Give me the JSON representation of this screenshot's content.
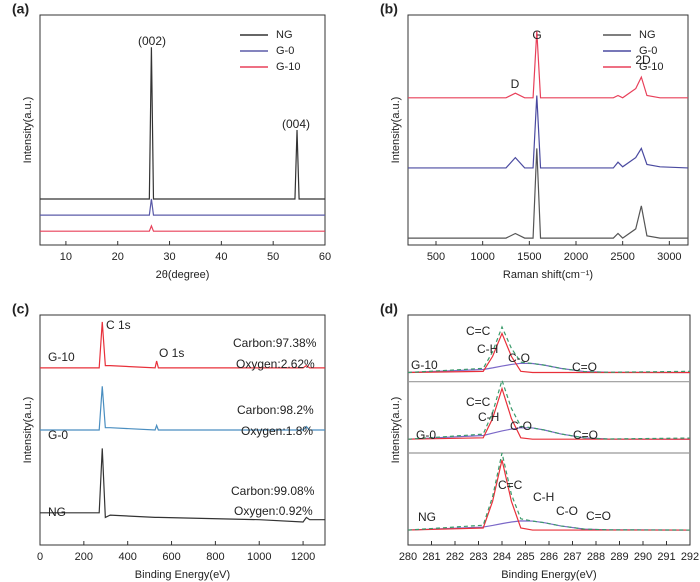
{
  "chart_data": [
    {
      "type": "line",
      "panel_label": "(a)",
      "x_label": "2θ(degree)",
      "y_label": "Intensity(a.u.)",
      "x": [
        5,
        26.1,
        26.5,
        26.9,
        54.2,
        54.6,
        55.0,
        60
      ],
      "series": [
        {
          "name": "NG",
          "color": "#333333",
          "values": [
            20,
            20,
            86,
            20,
            20,
            50,
            20,
            20
          ]
        },
        {
          "name": "G-0",
          "color": "#5b5ba8",
          "values": [
            13,
            13,
            20,
            13,
            13,
            13,
            13,
            13
          ]
        },
        {
          "name": "G-10",
          "color": "#e8405a",
          "values": [
            6,
            6,
            8.3,
            6,
            6,
            6,
            6,
            6
          ]
        }
      ],
      "xlim": [
        5,
        60
      ],
      "xticks": [
        10,
        20,
        30,
        40,
        50,
        60
      ],
      "ylim": [
        0,
        100
      ],
      "legend": "upper right",
      "annotations": [
        "(002)",
        "(004)"
      ]
    },
    {
      "type": "line",
      "panel_label": "(b)",
      "x_label": "Raman shift(cm⁻¹)",
      "y_label": "Intensity(a.u.)",
      "x": [
        200,
        1250,
        1350,
        1450,
        1540,
        1580,
        1620,
        2400,
        2450,
        2500,
        2640,
        2700,
        2760,
        2900,
        3200
      ],
      "series": [
        {
          "name": "NG",
          "color": "#555555",
          "values": [
            3,
            3,
            5,
            3,
            3,
            42,
            3,
            3,
            5,
            3,
            7,
            17,
            4,
            3,
            3
          ]
        },
        {
          "name": "G-0",
          "color": "#4a4aa0",
          "values": [
            33.5,
            33.5,
            38,
            33.5,
            33.5,
            65,
            33.5,
            33.5,
            36,
            34,
            38,
            42,
            35,
            34,
            33.5
          ]
        },
        {
          "name": "G-10",
          "color": "#e8405a",
          "values": [
            64,
            64,
            66,
            64,
            64,
            93,
            64,
            64,
            65,
            64,
            68,
            73,
            65,
            64,
            64
          ]
        }
      ],
      "xlim": [
        200,
        3200
      ],
      "xticks": [
        500,
        1000,
        1500,
        2000,
        2500,
        3000
      ],
      "ylim": [
        0,
        100
      ],
      "legend": "upper right",
      "annotations": [
        "D",
        "G",
        "2D"
      ]
    },
    {
      "type": "line",
      "panel_label": "(c)",
      "x_label": "Binding Energy(eV)",
      "y_label": "Intensity(a.u.)",
      "x": [
        0,
        270,
        284,
        298,
        320,
        525,
        532,
        540,
        1000,
        1200,
        1215,
        1230,
        1300
      ],
      "series": [
        {
          "name": "NG",
          "color": "#333333",
          "values": [
            14,
            14,
            42,
            12,
            13,
            12,
            12,
            12,
            11,
            10,
            12,
            11,
            11
          ]
        },
        {
          "name": "G-0",
          "color": "#4a8ec0",
          "values": [
            50,
            50,
            69,
            51,
            51,
            50,
            52,
            50,
            50,
            50,
            51.5,
            50,
            50
          ]
        },
        {
          "name": "G-10",
          "color": "#e8303a",
          "values": [
            77,
            77,
            97,
            78,
            78,
            77,
            80,
            77,
            77,
            77,
            78,
            77,
            77
          ]
        }
      ],
      "xlim": [
        0,
        1300
      ],
      "xticks": [
        0,
        200,
        400,
        600,
        800,
        1000,
        1200
      ],
      "ylim": [
        0,
        100
      ],
      "annotations": [
        "C 1s",
        "O 1s",
        "Carbon:97.38%",
        "Oxygen:2.62%",
        "Carbon:98.2%",
        "Oxygen:1.8%",
        "Carbon:99.08%",
        "Oxygen:0.92%"
      ]
    },
    {
      "type": "line",
      "panel_label": "(d)",
      "x_label": "Binding Energy(eV)",
      "y_label": "Intensity(a.u.)",
      "x": [
        280,
        283.2,
        283.6,
        284.0,
        284.4,
        284.8,
        285.3,
        285.8,
        286.5,
        287.5,
        288.5,
        292
      ],
      "series": [
        {
          "color": "#999999",
          "values": [
            71,
            71,
            71,
            71,
            71,
            71,
            71,
            71,
            71,
            71,
            71,
            71
          ]
        },
        {
          "color": "#999999",
          "values": [
            40,
            40,
            40,
            40,
            40,
            40,
            40,
            40,
            40,
            40,
            40,
            40
          ]
        },
        {
          "color": "#7b68c8",
          "values": [
            6.5,
            7.8,
            8.5,
            9.3,
            10,
            10.5,
            10.4,
            9.7,
            8.3,
            6.9,
            6.6,
            6.5
          ]
        },
        {
          "color": "#e8303a",
          "values": [
            6.5,
            7.4,
            19,
            37,
            19,
            7.4,
            6.5,
            6.5,
            6.5,
            6.5,
            6.5,
            6.5
          ]
        },
        {
          "color": "#3a9a6a",
          "dashed": true,
          "values": [
            6.5,
            8.6,
            21,
            40,
            22,
            11.4,
            10.4,
            9.7,
            8.3,
            6.9,
            6.6,
            6.5
          ]
        },
        {
          "color": "#7b68c8",
          "values": [
            46,
            47.6,
            48.6,
            49.6,
            50.4,
            51,
            50.9,
            50,
            48.3,
            46.6,
            46.1,
            46
          ]
        },
        {
          "color": "#e8303a",
          "values": [
            46,
            46.6,
            55,
            68,
            55,
            46.6,
            46,
            46,
            46,
            46,
            46,
            46
          ]
        },
        {
          "color": "#3a9a6a",
          "dashed": true,
          "values": [
            46,
            48.2,
            57.6,
            71.6,
            59.4,
            51.6,
            50.9,
            50,
            48.3,
            46.6,
            46.1,
            46.5
          ]
        },
        {
          "color": "#7b68c8",
          "values": [
            75,
            76.3,
            77,
            77.8,
            78.5,
            79,
            78.9,
            78.2,
            76.8,
            75.4,
            75.1,
            75
          ]
        },
        {
          "color": "#e8303a",
          "values": [
            75,
            75.5,
            82,
            92,
            82,
            75.5,
            75,
            75,
            75,
            75,
            75,
            75
          ]
        },
        {
          "color": "#3a9a6a",
          "dashed": true,
          "values": [
            75,
            76.8,
            84,
            94.8,
            85.5,
            79.5,
            78.9,
            78.2,
            76.8,
            75.4,
            75.1,
            75.5
          ]
        }
      ],
      "xlim": [
        280,
        292
      ],
      "xticks": [
        280,
        281,
        282,
        283,
        284,
        285,
        286,
        287,
        288,
        289,
        290,
        291,
        292
      ],
      "ylim": [
        0,
        100
      ],
      "annotations": [
        "G-10",
        "C=C",
        "C-H",
        "C-O",
        "C=O",
        "G-0",
        "C=C",
        "C-H",
        "C-O",
        "C=O",
        "NG",
        "C=C",
        "C-H",
        "C-O",
        "C=O"
      ]
    }
  ]
}
